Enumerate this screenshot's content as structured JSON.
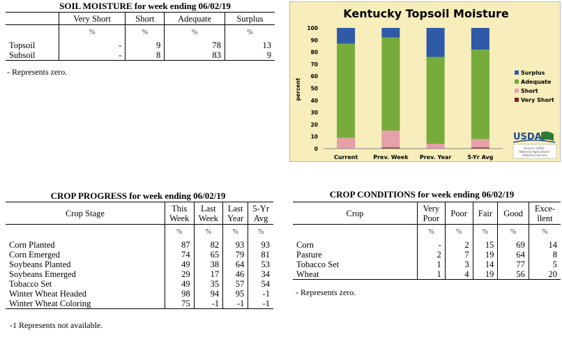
{
  "soil": {
    "title": "SOIL MOISTURE for week ending 06/02/19",
    "headers": [
      "Very Short",
      "Short",
      "Adequate",
      "Surplus"
    ],
    "pct": "%",
    "rows": [
      {
        "label": "Topsoil",
        "v": [
          "-",
          "9",
          "78",
          "13"
        ]
      },
      {
        "label": "Subsoil",
        "v": [
          "-",
          "8",
          "83",
          "9"
        ]
      }
    ],
    "note": "- Represents zero."
  },
  "progress": {
    "title": "CROP PROGRESS for week ending 06/02/19",
    "stage_header": "Crop Stage",
    "headers": [
      [
        "This",
        "Week"
      ],
      [
        "Last",
        "Week"
      ],
      [
        "Last",
        "Year"
      ],
      [
        "5-Yr",
        "Avg"
      ]
    ],
    "pct": "%",
    "rows": [
      {
        "label": "Corn Planted",
        "v": [
          "87",
          "82",
          "93",
          "93"
        ]
      },
      {
        "label": "Corn Emerged",
        "v": [
          "74",
          "65",
          "79",
          "81"
        ]
      },
      {
        "label": "Soybeans Planted",
        "v": [
          "49",
          "38",
          "64",
          "53"
        ]
      },
      {
        "label": "Soybeans Emerged",
        "v": [
          "29",
          "17",
          "46",
          "34"
        ]
      },
      {
        "label": "Tobacco Set",
        "v": [
          "49",
          "35",
          "57",
          "54"
        ]
      },
      {
        "label": "Winter Wheat Headed",
        "v": [
          "98",
          "94",
          "95",
          "-1"
        ]
      },
      {
        "label": "Winter Wheat Coloring",
        "v": [
          "75",
          "-1",
          "-1",
          "-1"
        ]
      }
    ],
    "note": "-1 Represents not available."
  },
  "conditions": {
    "title": "CROP CONDITIONS for week ending 06/02/19",
    "crop_header": "Crop",
    "headers": [
      [
        "Very",
        "Poor"
      ],
      [
        "Poor"
      ],
      [
        "Fair"
      ],
      [
        "Good"
      ],
      [
        "Exce-",
        "llent"
      ]
    ],
    "pct": "%",
    "rows": [
      {
        "label": "Corn",
        "v": [
          "-",
          "2",
          "15",
          "69",
          "14"
        ]
      },
      {
        "label": "Pasture",
        "v": [
          "2",
          "7",
          "19",
          "64",
          "8"
        ]
      },
      {
        "label": "Tobacco Set",
        "v": [
          "1",
          "3",
          "14",
          "77",
          "5"
        ]
      },
      {
        "label": "Wheat",
        "v": [
          "1",
          "4",
          "19",
          "56",
          "20"
        ]
      }
    ],
    "note": "- Represents zero."
  },
  "chart_data": {
    "type": "bar",
    "stacked": true,
    "title": "Kentucky Topsoil Moisture",
    "ylabel": "percent",
    "xlabel": "",
    "ylim": [
      0,
      100
    ],
    "yticks": [
      0,
      10,
      20,
      30,
      40,
      50,
      60,
      70,
      80,
      90,
      100
    ],
    "categories": [
      "Current",
      "Prev. Week",
      "Prev. Year",
      "5-Yr Avg"
    ],
    "series": [
      {
        "name": "Very Short",
        "color": "#8b1a1a",
        "values": [
          0,
          1,
          0,
          1
        ]
      },
      {
        "name": "Short",
        "color": "#e6a0a8",
        "values": [
          9,
          14,
          4,
          7
        ]
      },
      {
        "name": "Adequate",
        "color": "#77ab3c",
        "values": [
          78,
          77,
          72,
          74
        ]
      },
      {
        "name": "Surplus",
        "color": "#2e5aa7",
        "values": [
          13,
          8,
          24,
          18
        ]
      }
    ],
    "legend_position": "right",
    "grid": false,
    "logo": {
      "name": "USDA",
      "source": "Source: USDA, National Agricultural Statistics Service"
    }
  }
}
